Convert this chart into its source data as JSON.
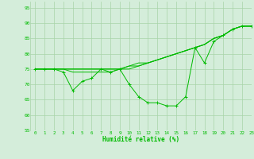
{
  "xlabel": "Humidité relative (%)",
  "xlim": [
    -0.5,
    23
  ],
  "ylim": [
    55,
    97
  ],
  "yticks": [
    55,
    60,
    65,
    70,
    75,
    80,
    85,
    90,
    95
  ],
  "xticks": [
    0,
    1,
    2,
    3,
    4,
    5,
    6,
    7,
    8,
    9,
    10,
    11,
    12,
    13,
    14,
    15,
    16,
    17,
    18,
    19,
    20,
    21,
    22,
    23
  ],
  "background_color": "#d4edda",
  "grid_color": "#a8d4a8",
  "line_color": "#00bb00",
  "series_smooth1": [
    75,
    75,
    75,
    75,
    75,
    75,
    75,
    75,
    75,
    75,
    76,
    76,
    77,
    78,
    79,
    80,
    81,
    82,
    83,
    85,
    86,
    88,
    89,
    89
  ],
  "series_smooth2": [
    75,
    75,
    75,
    75,
    75,
    75,
    75,
    75,
    75,
    75,
    76,
    77,
    77,
    78,
    79,
    80,
    81,
    82,
    83,
    85,
    86,
    88,
    89,
    89
  ],
  "series_smooth3": [
    75,
    75,
    75,
    75,
    74,
    74,
    74,
    74,
    74,
    75,
    75,
    76,
    77,
    78,
    79,
    80,
    81,
    82,
    83,
    85,
    86,
    88,
    89,
    89
  ],
  "series_marker": [
    75,
    75,
    75,
    74,
    68,
    71,
    72,
    75,
    74,
    75,
    70,
    66,
    64,
    64,
    63,
    63,
    66,
    82,
    77,
    84,
    86,
    88,
    89,
    89
  ],
  "figsize": [
    3.2,
    2.0
  ],
  "dpi": 100
}
